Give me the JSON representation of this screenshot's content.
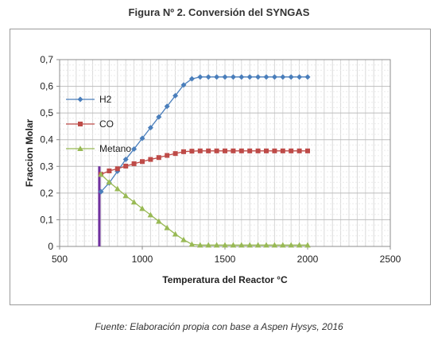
{
  "figure": {
    "title": "Figura Nº 2. Conversión del SYNGAS",
    "source": "Fuente: Elaboración propia con base a Aspen Hysys, 2016"
  },
  "chart_data": {
    "type": "line",
    "title": "",
    "xlabel": "Temperatura del Reactor °C",
    "ylabel": "Fraccion Molar",
    "xlim": [
      500,
      2500
    ],
    "ylim": [
      0,
      0.7
    ],
    "xticks": [
      500,
      1000,
      1500,
      2000,
      2500
    ],
    "xtick_labels": [
      "500",
      "1000",
      "1500",
      "2000",
      "2500"
    ],
    "yticks": [
      0,
      0.1,
      0.2,
      0.3,
      0.4,
      0.5,
      0.6,
      0.7
    ],
    "ytick_labels": [
      "0",
      "0,1",
      "0,2",
      "0,3",
      "0,4",
      "0,5",
      "0,6",
      "0,7"
    ],
    "grid": true,
    "legend_position": "left",
    "x": [
      750,
      800,
      850,
      900,
      950,
      1000,
      1050,
      1100,
      1150,
      1200,
      1250,
      1300,
      1350,
      1400,
      1450,
      1500,
      1550,
      1600,
      1650,
      1700,
      1750,
      1800,
      1850,
      1900,
      1950,
      2000
    ],
    "series": [
      {
        "name": "H2",
        "color": "#4a7ebb",
        "marker": "diamond",
        "values": [
          0.205,
          0.238,
          0.282,
          0.326,
          0.365,
          0.405,
          0.445,
          0.485,
          0.525,
          0.565,
          0.605,
          0.628,
          0.635,
          0.635,
          0.635,
          0.635,
          0.635,
          0.635,
          0.635,
          0.635,
          0.635,
          0.635,
          0.635,
          0.635,
          0.635,
          0.635
        ]
      },
      {
        "name": "CO",
        "color": "#be4b48",
        "marker": "square",
        "values": [
          0.27,
          0.283,
          0.291,
          0.301,
          0.31,
          0.318,
          0.326,
          0.333,
          0.341,
          0.348,
          0.355,
          0.357,
          0.358,
          0.358,
          0.358,
          0.358,
          0.358,
          0.358,
          0.358,
          0.358,
          0.358,
          0.358,
          0.358,
          0.358,
          0.358,
          0.358
        ]
      },
      {
        "name": "Metano",
        "color": "#98b954",
        "marker": "triangle",
        "values": [
          0.27,
          0.241,
          0.216,
          0.19,
          0.166,
          0.142,
          0.118,
          0.094,
          0.07,
          0.046,
          0.025,
          0.008,
          0.005,
          0.005,
          0.005,
          0.005,
          0.005,
          0.005,
          0.005,
          0.005,
          0.005,
          0.005,
          0.005,
          0.005,
          0.005,
          0.005
        ]
      }
    ],
    "reference_line": {
      "x": 740,
      "y_from": 0,
      "y_to": 0.3,
      "color": "#7030a0"
    }
  }
}
